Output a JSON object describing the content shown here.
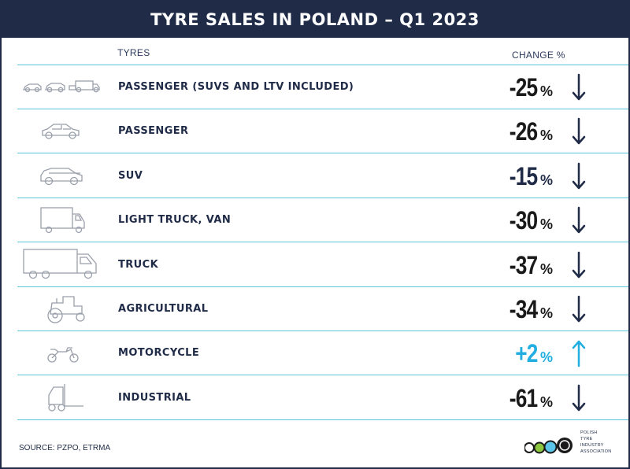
{
  "title": "TYRE SALES IN POLAND – Q1 2023",
  "headers": {
    "tyres": "TYRES",
    "change": "CHANGE %"
  },
  "rows": [
    {
      "label": "PASSENGER (SUVS AND LTV INCLUDED)",
      "value": "-25",
      "unit": "%",
      "trend": "down",
      "icon": "car-suv-van-icon"
    },
    {
      "label": "PASSENGER",
      "value": "-26",
      "unit": "%",
      "trend": "down",
      "icon": "passenger-car-icon"
    },
    {
      "label": "SUV",
      "value": "-15",
      "unit": "%",
      "trend": "down",
      "icon": "suv-icon"
    },
    {
      "label": "LIGHT TRUCK, VAN",
      "value": "-30",
      "unit": "%",
      "trend": "down",
      "icon": "van-icon"
    },
    {
      "label": "TRUCK",
      "value": "-37",
      "unit": "%",
      "trend": "down",
      "icon": "truck-icon"
    },
    {
      "label": "AGRICULTURAL",
      "value": "-34",
      "unit": "%",
      "trend": "down",
      "icon": "tractor-icon"
    },
    {
      "label": "MOTORCYCLE",
      "value": "+2",
      "unit": "%",
      "trend": "up",
      "icon": "motorcycle-icon"
    },
    {
      "label": "INDUSTRIAL",
      "value": "-61",
      "unit": "%",
      "trend": "down",
      "icon": "forklift-icon"
    }
  ],
  "source": "SOURCE: PZPO, ETRMA",
  "logo": {
    "lines": [
      "POLISH",
      "TYRE",
      "INDUSTRY",
      "ASSOCIATION"
    ]
  },
  "colors": {
    "dark": "#1f2b47",
    "accent": "#5bc4d8",
    "positive": "#22aee0",
    "negative": "#1a1a1a"
  },
  "chart_data": {
    "type": "table",
    "title": "TYRE SALES IN POLAND – Q1 2023",
    "columns": [
      "TYRES",
      "CHANGE %"
    ],
    "categories": [
      "PASSENGER (SUVS AND LTV INCLUDED)",
      "PASSENGER",
      "SUV",
      "LIGHT TRUCK, VAN",
      "TRUCK",
      "AGRICULTURAL",
      "MOTORCYCLE",
      "INDUSTRIAL"
    ],
    "values": [
      -25,
      -26,
      -15,
      -30,
      -37,
      -34,
      2,
      -61
    ]
  }
}
